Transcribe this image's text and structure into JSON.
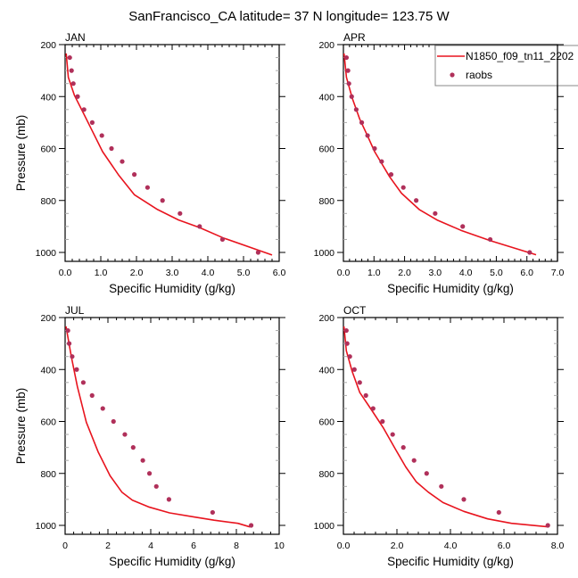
{
  "figure": {
    "title": "SanFrancisco_CA  latitude= 37 N longitude= 123.75 W"
  },
  "colors": {
    "model_line": "#e8141e",
    "raobs_marker": "#b0305a",
    "axis": "#000000",
    "legend_border": "#888888"
  },
  "legend": {
    "placement": "top-right of APR panel",
    "entries": [
      {
        "label": "N1850_f09_tn11_2202",
        "type": "line"
      },
      {
        "label": "raobs",
        "type": "marker"
      }
    ]
  },
  "chart_data": [
    {
      "type": "line",
      "panel": "JAN",
      "title": "JAN",
      "xlabel": "Specific Humidity (g/kg)",
      "ylabel": "Pressure (mb)",
      "xlim": [
        0,
        6
      ],
      "ylim": [
        1034,
        200
      ],
      "y_inverted": true,
      "xticks": [
        0,
        1,
        2,
        3,
        4,
        5,
        6
      ],
      "xtick_labels": [
        "0.0",
        "1.0",
        "2.0",
        "3.0",
        "4.0",
        "5.0",
        "6.0"
      ],
      "yticks": [
        200,
        400,
        600,
        800,
        1000
      ],
      "ytick_labels": [
        "200",
        "400",
        "600",
        "800",
        "1000"
      ],
      "series": [
        {
          "name": "N1850_f09_tn11_2202",
          "style": "line",
          "x": [
            0.03,
            0.09,
            0.26,
            0.51,
            0.76,
            1.05,
            1.51,
            1.94,
            2.59,
            3.18,
            3.76,
            4.43,
            5.8
          ],
          "y": [
            234,
            326,
            395,
            463,
            532,
            612,
            704,
            778,
            835,
            875,
            904,
            944,
            1010
          ]
        },
        {
          "name": "raobs",
          "style": "marker",
          "x": [
            0.13,
            0.18,
            0.23,
            0.35,
            0.53,
            0.76,
            1.03,
            1.3,
            1.6,
            1.94,
            2.31,
            2.73,
            3.22,
            3.77,
            4.41,
            5.41
          ],
          "y": [
            250,
            300,
            350,
            400,
            450,
            500,
            550,
            600,
            650,
            700,
            750,
            800,
            850,
            900,
            950,
            1000
          ]
        }
      ]
    },
    {
      "type": "line",
      "panel": "APR",
      "title": "APR",
      "xlabel": "Specific Humidity (g/kg)",
      "ylabel": "",
      "xlim": [
        0,
        7
      ],
      "ylim": [
        1034,
        200
      ],
      "y_inverted": true,
      "xticks": [
        0,
        1,
        2,
        3,
        4,
        5,
        6,
        7
      ],
      "xtick_labels": [
        "0.0",
        "1.0",
        "2.0",
        "3.0",
        "4.0",
        "5.0",
        "6.0",
        "7.0"
      ],
      "yticks": [
        200,
        400,
        600,
        800,
        1000
      ],
      "ytick_labels": [
        "200",
        "400",
        "600",
        "800",
        "1000"
      ],
      "series": [
        {
          "name": "N1850_f09_tn11_2202",
          "style": "line",
          "x": [
            0.02,
            0.1,
            0.29,
            0.53,
            0.78,
            1.02,
            1.51,
            1.9,
            2.48,
            3.06,
            3.84,
            4.81,
            6.3
          ],
          "y": [
            234,
            326,
            406,
            486,
            549,
            612,
            709,
            772,
            835,
            875,
            915,
            955,
            1009
          ]
        },
        {
          "name": "raobs",
          "style": "marker",
          "x": [
            0.1,
            0.15,
            0.18,
            0.27,
            0.42,
            0.6,
            0.79,
            1.02,
            1.25,
            1.56,
            1.96,
            2.38,
            3.0,
            3.9,
            4.8,
            6.09
          ],
          "y": [
            250,
            300,
            350,
            400,
            450,
            500,
            550,
            600,
            650,
            700,
            750,
            800,
            850,
            900,
            950,
            1000
          ]
        }
      ]
    },
    {
      "type": "line",
      "panel": "JUL",
      "title": "JUL",
      "xlabel": "Specific Humidity (g/kg)",
      "ylabel": "Pressure (mb)",
      "xlim": [
        0,
        10
      ],
      "ylim": [
        1034,
        200
      ],
      "y_inverted": true,
      "xticks": [
        0,
        2,
        4,
        6,
        8,
        10
      ],
      "xtick_labels": [
        "0",
        "2",
        "4",
        "6",
        "8",
        "10"
      ],
      "yticks": [
        200,
        400,
        600,
        800,
        1000
      ],
      "ytick_labels": [
        "200",
        "400",
        "600",
        "800",
        "1000"
      ],
      "series": [
        {
          "name": "N1850_f09_tn11_2202",
          "style": "line",
          "x": [
            0.04,
            0.29,
            0.57,
            0.99,
            1.54,
            2.1,
            2.65,
            3.14,
            3.9,
            4.88,
            5.99,
            6.96,
            8.07,
            8.63
          ],
          "y": [
            234,
            351,
            465,
            603,
            717,
            809,
            872,
            903,
            929,
            952,
            967,
            980,
            992,
            1006
          ]
        },
        {
          "name": "raobs",
          "style": "marker",
          "x": [
            0.13,
            0.19,
            0.33,
            0.54,
            0.85,
            1.26,
            1.76,
            2.26,
            2.79,
            3.18,
            3.63,
            3.94,
            4.26,
            4.85,
            6.89,
            8.69
          ],
          "y": [
            250,
            300,
            350,
            400,
            450,
            500,
            550,
            600,
            650,
            700,
            750,
            800,
            850,
            900,
            950,
            1000
          ]
        }
      ]
    },
    {
      "type": "line",
      "panel": "OCT",
      "title": "OCT",
      "xlabel": "Specific Humidity (g/kg)",
      "ylabel": "",
      "xlim": [
        0,
        8
      ],
      "ylim": [
        1034,
        200
      ],
      "y_inverted": true,
      "xticks": [
        0,
        2,
        4,
        6,
        8
      ],
      "xtick_labels": [
        "0.0",
        "2.0",
        "4.0",
        "6.0",
        "8.0"
      ],
      "yticks": [
        200,
        400,
        600,
        800,
        1000
      ],
      "ytick_labels": [
        "200",
        "400",
        "600",
        "800",
        "1000"
      ],
      "series": [
        {
          "name": "N1850_f09_tn11_2202",
          "style": "line",
          "x": [
            0.02,
            0.11,
            0.33,
            0.61,
            1.06,
            1.5,
            1.94,
            2.33,
            2.72,
            3.17,
            3.72,
            4.5,
            5.39,
            6.28,
            7.67
          ],
          "y": [
            234,
            328,
            408,
            488,
            557,
            626,
            706,
            775,
            832,
            872,
            912,
            946,
            975,
            992,
            1006
          ]
        },
        {
          "name": "raobs",
          "style": "marker",
          "x": [
            0.11,
            0.14,
            0.24,
            0.41,
            0.61,
            0.84,
            1.11,
            1.46,
            1.84,
            2.24,
            2.64,
            3.11,
            3.66,
            4.5,
            5.81,
            7.64
          ],
          "y": [
            250,
            300,
            350,
            400,
            450,
            500,
            550,
            600,
            650,
            700,
            750,
            800,
            850,
            900,
            950,
            1000
          ]
        }
      ]
    }
  ]
}
